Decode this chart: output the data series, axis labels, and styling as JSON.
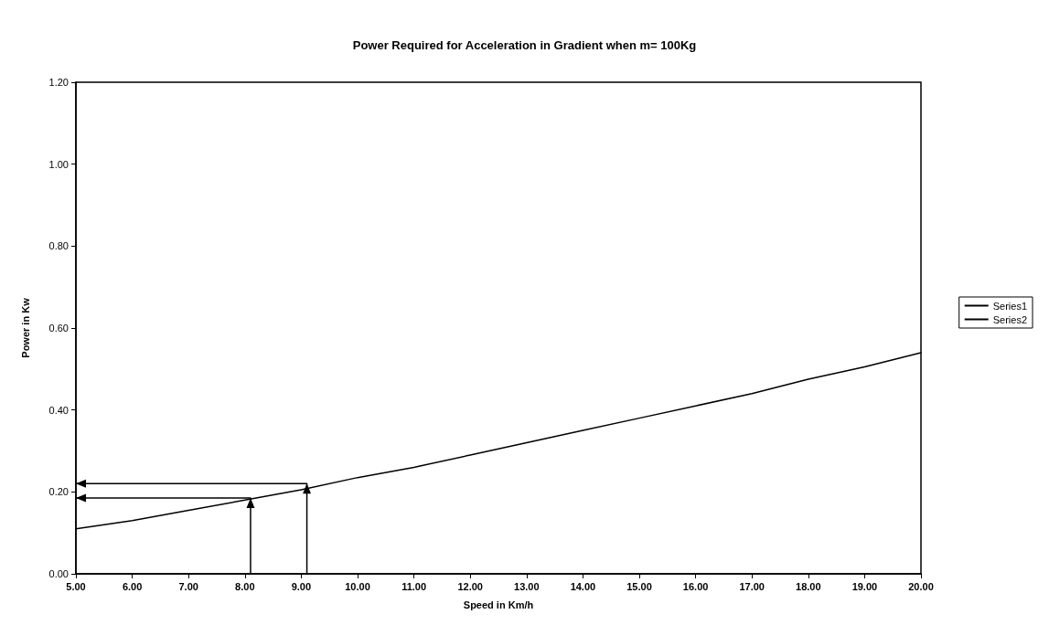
{
  "chart_data": {
    "type": "line",
    "title": "Power Required for Acceleration in Gradient when m= 100Kg",
    "xlabel": "Speed in Km/h",
    "ylabel": "Power in Kw",
    "xlim": [
      5,
      20
    ],
    "xticks": [
      {
        "value": 5,
        "label": "5.00"
      },
      {
        "value": 6,
        "label": "6.00"
      },
      {
        "value": 7,
        "label": "7.00"
      },
      {
        "value": 8,
        "label": "8.00"
      },
      {
        "value": 9,
        "label": "9.00"
      },
      {
        "value": 10,
        "label": "10.00"
      },
      {
        "value": 11,
        "label": "11.00"
      },
      {
        "value": 12,
        "label": "12.00"
      },
      {
        "value": 13,
        "label": "13.00"
      },
      {
        "value": 14,
        "label": "14.00"
      },
      {
        "value": 15,
        "label": "15.00"
      },
      {
        "value": 16,
        "label": "16.00"
      },
      {
        "value": 17,
        "label": "17.00"
      },
      {
        "value": 18,
        "label": "18.00"
      },
      {
        "value": 19,
        "label": "19.00"
      },
      {
        "value": 20,
        "label": "20.00"
      }
    ],
    "ylim": [
      0,
      1.2
    ],
    "yticks": [
      {
        "value": 0,
        "label": "0.00"
      },
      {
        "value": 0.2,
        "label": "0.20"
      },
      {
        "value": 0.4,
        "label": "0.40"
      },
      {
        "value": 0.6,
        "label": "0.60"
      },
      {
        "value": 0.8,
        "label": "0.80"
      },
      {
        "value": 1,
        "label": "1.00"
      },
      {
        "value": 1.2,
        "label": "1.20"
      }
    ],
    "grid": false,
    "legend": "right",
    "series": [
      {
        "name": "Series1",
        "color": "#000000",
        "x": [
          5,
          6,
          7,
          8,
          9,
          10,
          11,
          12,
          13,
          14,
          15,
          16,
          17,
          18,
          19,
          20
        ],
        "values": [
          0.11,
          0.13,
          0.155,
          0.18,
          0.205,
          0.235,
          0.26,
          0.29,
          0.32,
          0.35,
          0.38,
          0.41,
          0.44,
          0.475,
          0.505,
          0.54
        ]
      },
      {
        "name": "Series2",
        "color": "#000000",
        "x": [
          8.1,
          8.1,
          5,
          null,
          9.1,
          9.1,
          5
        ],
        "values": [
          0,
          0.185,
          0.185,
          null,
          0,
          0.22,
          0.22
        ]
      }
    ]
  }
}
